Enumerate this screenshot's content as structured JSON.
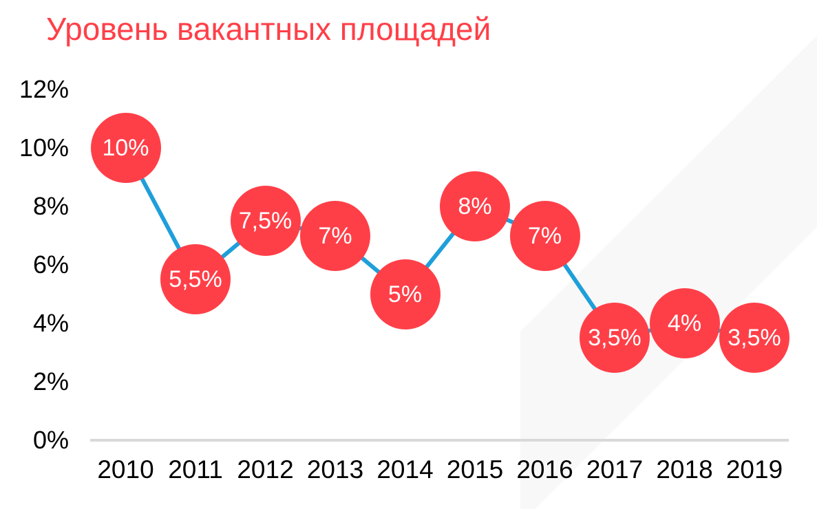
{
  "title": "Уровень вакантных площадей",
  "colors": {
    "title": "#ff3f48",
    "marker": "#ff3f48",
    "line": "#1f9fda",
    "axis": "#d9d9d9",
    "band": "#f8f8f8",
    "marker_text": "#ffffff",
    "tick_text": "#000000"
  },
  "y_axis": {
    "ticks": [
      "12%",
      "10%",
      "8%",
      "6%",
      "4%",
      "2%",
      "0%"
    ],
    "tick_values": [
      12,
      10,
      8,
      6,
      4,
      2,
      0
    ]
  },
  "x_axis": {
    "ticks": [
      "2010",
      "2011",
      "2012",
      "2013",
      "2014",
      "2015",
      "2016",
      "2017",
      "2018",
      "2019"
    ]
  },
  "points": [
    {
      "year": "2010",
      "value": 10,
      "label": "10%"
    },
    {
      "year": "2011",
      "value": 5.5,
      "label": "5,5%"
    },
    {
      "year": "2012",
      "value": 7.5,
      "label": "7,5%"
    },
    {
      "year": "2013",
      "value": 7,
      "label": "7%"
    },
    {
      "year": "2014",
      "value": 5,
      "label": "5%"
    },
    {
      "year": "2015",
      "value": 8,
      "label": "8%"
    },
    {
      "year": "2016",
      "value": 7,
      "label": "7%"
    },
    {
      "year": "2017",
      "value": 3.5,
      "label": "3,5%"
    },
    {
      "year": "2018",
      "value": 4,
      "label": "4%"
    },
    {
      "year": "2019",
      "value": 3.5,
      "label": "3,5%"
    }
  ],
  "chart_data": {
    "type": "line",
    "title": "Уровень вакантных площадей",
    "xlabel": "",
    "ylabel": "",
    "categories": [
      "2010",
      "2011",
      "2012",
      "2013",
      "2014",
      "2015",
      "2016",
      "2017",
      "2018",
      "2019"
    ],
    "series": [
      {
        "name": "Уровень вакантных площадей",
        "values": [
          10,
          5.5,
          7.5,
          7,
          5,
          8,
          7,
          3.5,
          4,
          3.5
        ],
        "data_labels": [
          "10%",
          "5,5%",
          "7,5%",
          "7%",
          "5%",
          "8%",
          "7%",
          "3,5%",
          "4%",
          "3,5%"
        ]
      }
    ],
    "ylim": [
      0,
      12
    ],
    "yticks": [
      "0%",
      "2%",
      "4%",
      "6%",
      "8%",
      "10%",
      "12%"
    ],
    "grid": false,
    "legend": "none",
    "marker": "large circle with data label"
  }
}
